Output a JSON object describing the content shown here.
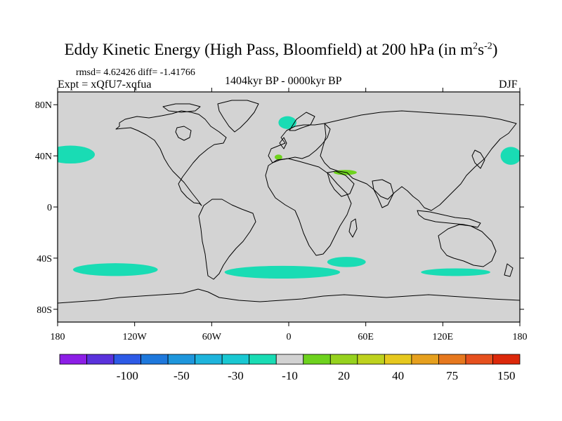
{
  "title": {
    "main": "Eddy Kinetic Energy (High Pass, Bloomfield) at 200 hPa (in m",
    "sup1": "2",
    "mid": "s",
    "sup2": "-2",
    "end": ")"
  },
  "stats": "rmsd= 4.62426 diff= -1.41766",
  "experiment": "Expt = xQfU7-xqfua",
  "period": "1404kyr BP - 0000kyr BP",
  "season": "DJF",
  "colors": {
    "land_mask": "#d3d3d3",
    "coast": "#000000",
    "neg_small": "#19dcb4",
    "pos_small": "#6ed21e"
  },
  "chart_data": {
    "type": "map",
    "projection": "cylindrical-equidistant",
    "lon_range": [
      -180,
      180
    ],
    "lat_range": [
      -90,
      90
    ],
    "lat_ticks": [
      {
        "value": 80,
        "label": "80N"
      },
      {
        "value": 40,
        "label": "40N"
      },
      {
        "value": 0,
        "label": "0"
      },
      {
        "value": -40,
        "label": "40S"
      },
      {
        "value": -80,
        "label": "80S"
      }
    ],
    "lon_ticks": [
      {
        "value": -180,
        "label": "180"
      },
      {
        "value": -120,
        "label": "120W"
      },
      {
        "value": -60,
        "label": "60W"
      },
      {
        "value": 0,
        "label": "0"
      },
      {
        "value": 60,
        "label": "60E"
      },
      {
        "value": 120,
        "label": "120E"
      },
      {
        "value": 180,
        "label": "180"
      }
    ],
    "colorbar": {
      "colors": [
        "#8c1ee6",
        "#5a32dc",
        "#2d5ae6",
        "#1e78dc",
        "#1e96dc",
        "#1eb4dc",
        "#19c8d2",
        "#19dcb4",
        "#d2d2d2",
        "#6ed21e",
        "#96d21e",
        "#bed21e",
        "#e6c81e",
        "#e6a01e",
        "#e6781e",
        "#e6501e",
        "#dc280a"
      ],
      "labels": [
        {
          "text": "-100",
          "slot": 2
        },
        {
          "text": "-50",
          "slot": 4
        },
        {
          "text": "-30",
          "slot": 6
        },
        {
          "text": "-10",
          "slot": 8
        },
        {
          "text": "20",
          "slot": 10
        },
        {
          "text": "40",
          "slot": 12
        },
        {
          "text": "75",
          "slot": 14
        },
        {
          "text": "150",
          "slot": 16
        }
      ]
    },
    "anomaly_regions": [
      {
        "name": "north-pacific-west",
        "category": "-10",
        "center": [
          -170,
          41
        ],
        "extent": [
          19,
          7
        ]
      },
      {
        "name": "north-pacific-east",
        "category": "-10",
        "center": [
          173,
          40
        ],
        "extent": [
          8,
          7
        ]
      },
      {
        "name": "north-atlantic",
        "category": "-10",
        "center": [
          -1,
          66
        ],
        "extent": [
          7,
          5
        ]
      },
      {
        "name": "iberia",
        "category": "20",
        "center": [
          -8,
          39
        ],
        "extent": [
          3,
          2
        ]
      },
      {
        "name": "middle-east",
        "category": "20",
        "center": [
          44,
          27
        ],
        "extent": [
          9,
          2
        ]
      },
      {
        "name": "south-pacific",
        "category": "-10",
        "center": [
          -135,
          -49
        ],
        "extent": [
          33,
          5
        ]
      },
      {
        "name": "south-atlantic-indian",
        "category": "-10",
        "center": [
          -5,
          -51
        ],
        "extent": [
          45,
          5
        ]
      },
      {
        "name": "south-indian",
        "category": "-10",
        "center": [
          45,
          -43
        ],
        "extent": [
          15,
          4
        ]
      },
      {
        "name": "south-australia",
        "category": "-10",
        "center": [
          130,
          -51
        ],
        "extent": [
          27,
          3
        ]
      }
    ]
  }
}
